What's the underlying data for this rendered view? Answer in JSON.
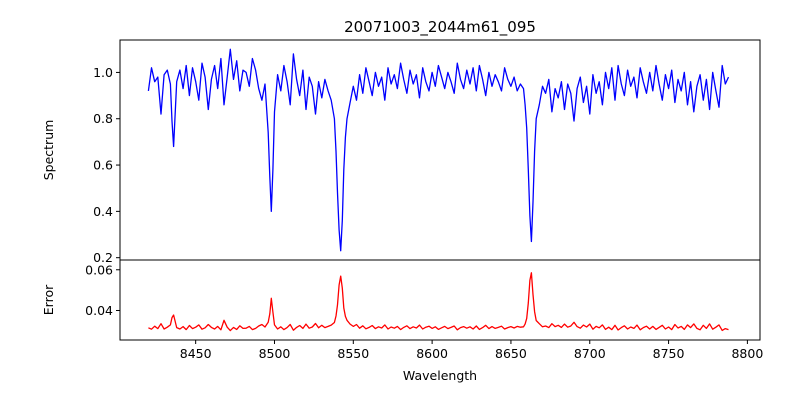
{
  "chart_data": {
    "type": "line",
    "title": "20071003_2044m61_095",
    "xlabel": "Wavelength",
    "xlim": [
      8402,
      8808
    ],
    "xticks": [
      8450,
      8500,
      8550,
      8600,
      8650,
      8700,
      8750,
      8800
    ],
    "grid": false,
    "legend": "none",
    "panels": [
      {
        "ylabel": "Spectrum",
        "ylim": [
          0.19,
          1.14
        ],
        "yticks": [
          0.2,
          0.4,
          0.6,
          0.8,
          1.0
        ],
        "ytick_labels": [
          "0.2",
          "0.4",
          "0.6",
          "0.8",
          "1.0"
        ],
        "color": "#0000ff",
        "series": [
          {
            "x": [
              8420,
              8422,
              8424,
              8426,
              8428,
              8430,
              8432,
              8434,
              8435,
              8436,
              8438,
              8440,
              8442,
              8444,
              8446,
              8448,
              8450,
              8452,
              8454,
              8456,
              8458,
              8460,
              8462,
              8464,
              8466,
              8468,
              8470,
              8472,
              8474,
              8476,
              8478,
              8480,
              8482,
              8484,
              8486,
              8488,
              8490,
              8492,
              8494,
              8496,
              8497,
              8498,
              8499,
              8500,
              8502,
              8504,
              8506,
              8508,
              8510,
              8512,
              8514,
              8516,
              8518,
              8520,
              8522,
              8524,
              8526,
              8528,
              8530,
              8532,
              8534,
              8536,
              8538,
              8539,
              8540,
              8541,
              8542,
              8543,
              8544,
              8545,
              8546,
              8548,
              8550,
              8552,
              8554,
              8556,
              8558,
              8560,
              8562,
              8564,
              8566,
              8568,
              8570,
              8572,
              8574,
              8576,
              8578,
              8580,
              8582,
              8584,
              8586,
              8588,
              8590,
              8592,
              8594,
              8596,
              8598,
              8600,
              8602,
              8604,
              8606,
              8608,
              8610,
              8612,
              8614,
              8616,
              8618,
              8620,
              8622,
              8624,
              8626,
              8628,
              8630,
              8632,
              8634,
              8636,
              8638,
              8640,
              8642,
              8644,
              8646,
              8648,
              8650,
              8652,
              8654,
              8656,
              8658,
              8659,
              8660,
              8661,
              8662,
              8663,
              8664,
              8665,
              8666,
              8668,
              8670,
              8672,
              8674,
              8676,
              8678,
              8680,
              8682,
              8684,
              8686,
              8688,
              8690,
              8692,
              8694,
              8696,
              8698,
              8700,
              8702,
              8704,
              8706,
              8708,
              8710,
              8712,
              8714,
              8716,
              8718,
              8720,
              8722,
              8724,
              8726,
              8728,
              8730,
              8732,
              8734,
              8736,
              8738,
              8740,
              8742,
              8744,
              8746,
              8748,
              8750,
              8752,
              8754,
              8756,
              8758,
              8760,
              8762,
              8764,
              8766,
              8768,
              8770,
              8772,
              8774,
              8776,
              8778,
              8780,
              8782,
              8784,
              8786,
              8788
            ],
            "y": [
              0.92,
              1.02,
              0.96,
              0.98,
              0.82,
              0.99,
              1.01,
              0.95,
              0.79,
              0.68,
              0.96,
              1.01,
              0.93,
              1.03,
              0.9,
              1.02,
              0.96,
              0.88,
              1.04,
              0.98,
              0.84,
              0.97,
              1.03,
              0.93,
              1.06,
              0.86,
              0.98,
              1.1,
              0.97,
              1.05,
              0.92,
              1.01,
              1.0,
              0.94,
              1.06,
              1.01,
              0.93,
              0.88,
              0.95,
              0.74,
              0.55,
              0.4,
              0.58,
              0.83,
              0.99,
              0.92,
              1.03,
              0.96,
              0.86,
              1.08,
              0.97,
              0.9,
              1.01,
              0.84,
              0.98,
              0.94,
              0.82,
              0.96,
              0.89,
              0.97,
              0.92,
              0.88,
              0.8,
              0.66,
              0.48,
              0.32,
              0.23,
              0.36,
              0.58,
              0.72,
              0.8,
              0.87,
              0.94,
              0.88,
              0.99,
              0.91,
              1.02,
              0.96,
              0.9,
              1.0,
              0.94,
              0.98,
              0.88,
              1.02,
              0.95,
              0.99,
              0.93,
              1.04,
              0.97,
              0.91,
              1.01,
              0.95,
              0.99,
              0.89,
              1.02,
              0.96,
              0.92,
              1.0,
              0.94,
              1.03,
              0.98,
              0.93,
              1.0,
              0.96,
              0.91,
              1.04,
              0.97,
              0.93,
              1.01,
              0.95,
              1.02,
              0.92,
              1.03,
              0.97,
              0.9,
              1.0,
              0.94,
              0.99,
              0.96,
              0.92,
              1.02,
              0.97,
              0.94,
              0.98,
              0.92,
              0.95,
              0.93,
              0.86,
              0.76,
              0.58,
              0.38,
              0.27,
              0.44,
              0.66,
              0.8,
              0.86,
              0.94,
              0.91,
              0.97,
              0.83,
              0.93,
              0.89,
              0.96,
              0.84,
              0.95,
              0.91,
              0.79,
              0.93,
              0.98,
              0.87,
              0.94,
              0.82,
              0.99,
              0.91,
              0.96,
              0.86,
              1.0,
              0.93,
              1.02,
              0.88,
              1.03,
              0.95,
              0.9,
              1.01,
              0.94,
              0.98,
              0.89,
              1.02,
              0.96,
              0.91,
              1.0,
              0.92,
              1.03,
              0.95,
              0.88,
              0.99,
              0.93,
              1.01,
              0.87,
              0.97,
              0.92,
              1.0,
              0.86,
              0.96,
              0.83,
              0.94,
              0.99,
              0.88,
              0.97,
              0.84,
              1.0,
              0.92,
              0.85,
              1.03,
              0.95,
              0.98
            ],
            "shape": "line"
          }
        ]
      },
      {
        "ylabel": "Error",
        "ylim": [
          0.0255,
          0.0648
        ],
        "yticks": [
          0.04,
          0.06
        ],
        "ytick_labels": [
          "0.04",
          "0.06"
        ],
        "color": "#ff0000",
        "series": [
          {
            "x": [
              8420,
              8422,
              8424,
              8426,
              8428,
              8430,
              8432,
              8434,
              8435,
              8436,
              8438,
              8440,
              8442,
              8444,
              8446,
              8448,
              8450,
              8452,
              8454,
              8456,
              8458,
              8460,
              8462,
              8464,
              8466,
              8468,
              8470,
              8472,
              8474,
              8476,
              8478,
              8480,
              8482,
              8484,
              8486,
              8488,
              8490,
              8492,
              8494,
              8496,
              8497,
              8498,
              8499,
              8500,
              8502,
              8504,
              8506,
              8508,
              8510,
              8512,
              8514,
              8516,
              8518,
              8520,
              8522,
              8524,
              8526,
              8528,
              8530,
              8532,
              8534,
              8536,
              8538,
              8539,
              8540,
              8541,
              8542,
              8543,
              8544,
              8545,
              8546,
              8548,
              8550,
              8552,
              8554,
              8556,
              8558,
              8560,
              8562,
              8564,
              8566,
              8568,
              8570,
              8572,
              8574,
              8576,
              8578,
              8580,
              8582,
              8584,
              8586,
              8588,
              8590,
              8592,
              8594,
              8596,
              8598,
              8600,
              8602,
              8604,
              8606,
              8608,
              8610,
              8612,
              8614,
              8616,
              8618,
              8620,
              8622,
              8624,
              8626,
              8628,
              8630,
              8632,
              8634,
              8636,
              8638,
              8640,
              8642,
              8644,
              8646,
              8648,
              8650,
              8652,
              8654,
              8656,
              8658,
              8659,
              8660,
              8661,
              8662,
              8663,
              8664,
              8665,
              8666,
              8668,
              8670,
              8672,
              8674,
              8676,
              8678,
              8680,
              8682,
              8684,
              8686,
              8688,
              8690,
              8692,
              8694,
              8696,
              8698,
              8700,
              8702,
              8704,
              8706,
              8708,
              8710,
              8712,
              8714,
              8716,
              8718,
              8720,
              8722,
              8724,
              8726,
              8728,
              8730,
              8732,
              8734,
              8736,
              8738,
              8740,
              8742,
              8744,
              8746,
              8748,
              8750,
              8752,
              8754,
              8756,
              8758,
              8760,
              8762,
              8764,
              8766,
              8768,
              8770,
              8772,
              8774,
              8776,
              8778,
              8780,
              8782,
              8784,
              8786,
              8788
            ],
            "y": [
              0.0315,
              0.0308,
              0.0323,
              0.0311,
              0.0335,
              0.0309,
              0.0318,
              0.0329,
              0.0365,
              0.0378,
              0.0316,
              0.0309,
              0.0321,
              0.0306,
              0.0326,
              0.0311,
              0.0318,
              0.0329,
              0.0308,
              0.0315,
              0.0331,
              0.0317,
              0.0309,
              0.0322,
              0.0305,
              0.0352,
              0.0318,
              0.0301,
              0.0317,
              0.0307,
              0.0325,
              0.0312,
              0.0313,
              0.0322,
              0.0306,
              0.0312,
              0.0324,
              0.0331,
              0.0319,
              0.0342,
              0.0383,
              0.046,
              0.0392,
              0.0329,
              0.0309,
              0.032,
              0.0306,
              0.0316,
              0.0331,
              0.0303,
              0.0317,
              0.0326,
              0.0312,
              0.0333,
              0.0313,
              0.0319,
              0.0336,
              0.0315,
              0.0327,
              0.0316,
              0.0322,
              0.0328,
              0.0341,
              0.0373,
              0.0428,
              0.0525,
              0.0569,
              0.051,
              0.0412,
              0.0371,
              0.0352,
              0.0333,
              0.0322,
              0.0331,
              0.0313,
              0.0325,
              0.031,
              0.0317,
              0.0326,
              0.0311,
              0.032,
              0.0314,
              0.0329,
              0.0309,
              0.0319,
              0.0313,
              0.0322,
              0.0306,
              0.0317,
              0.0325,
              0.0311,
              0.032,
              0.0314,
              0.0328,
              0.0309,
              0.0318,
              0.0323,
              0.0312,
              0.032,
              0.0307,
              0.0315,
              0.0322,
              0.0311,
              0.0317,
              0.0324,
              0.0305,
              0.0316,
              0.0321,
              0.0313,
              0.032,
              0.0309,
              0.0324,
              0.0307,
              0.0316,
              0.0327,
              0.0311,
              0.0321,
              0.0312,
              0.0317,
              0.0323,
              0.0309,
              0.0316,
              0.0321,
              0.0314,
              0.0322,
              0.0318,
              0.032,
              0.0333,
              0.0361,
              0.0437,
              0.0549,
              0.0585,
              0.0478,
              0.0394,
              0.0351,
              0.0335,
              0.032,
              0.0324,
              0.0316,
              0.0335,
              0.0321,
              0.0327,
              0.0317,
              0.0333,
              0.0318,
              0.0324,
              0.0342,
              0.0321,
              0.0313,
              0.0328,
              0.0319,
              0.0333,
              0.0308,
              0.0322,
              0.0315,
              0.0329,
              0.0307,
              0.0318,
              0.0306,
              0.0327,
              0.0304,
              0.0316,
              0.0325,
              0.0309,
              0.0319,
              0.0312,
              0.0328,
              0.0305,
              0.0316,
              0.0323,
              0.0309,
              0.0322,
              0.0307,
              0.0317,
              0.0327,
              0.0309,
              0.0319,
              0.0306,
              0.0331,
              0.0314,
              0.0322,
              0.0307,
              0.0329,
              0.0316,
              0.0334,
              0.0312,
              0.0305,
              0.0327,
              0.0312,
              0.0334,
              0.0308,
              0.0318,
              0.0329,
              0.0302,
              0.0311,
              0.0306
            ],
            "shape": "line"
          }
        ]
      }
    ]
  }
}
